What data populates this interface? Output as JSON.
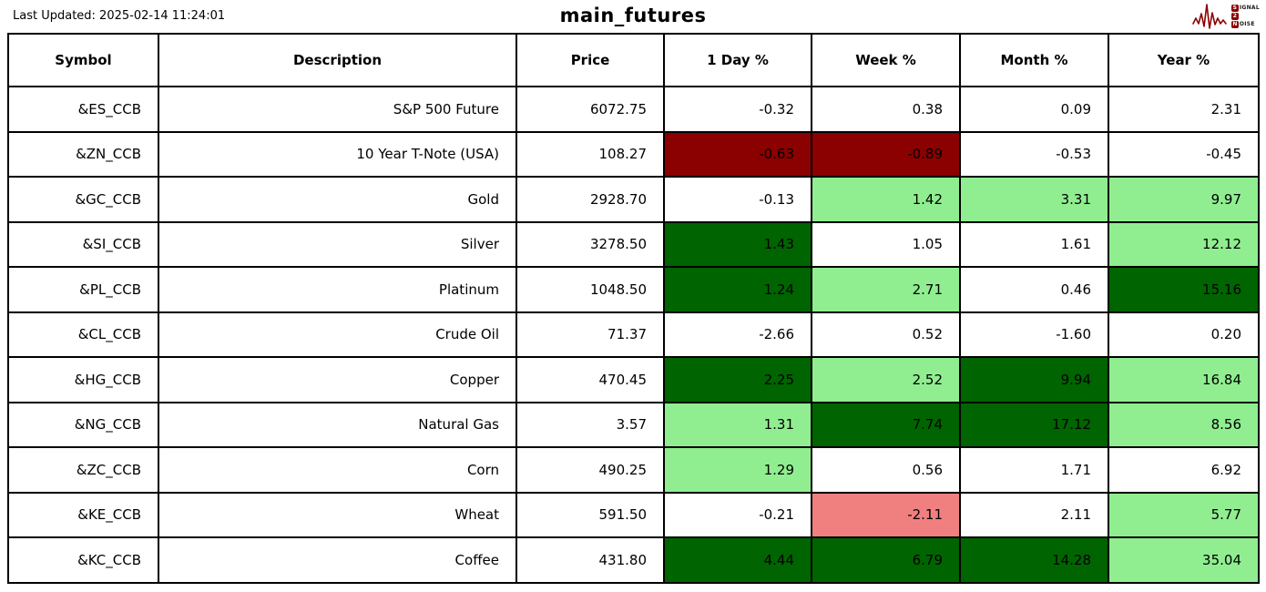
{
  "meta": {
    "last_updated": "Last Updated: 2025-02-14 11:24:01",
    "title": "main_futures"
  },
  "logo": {
    "s_box": "S",
    "signal_rest": "IGNAL",
    "two_box": "2",
    "n_box": "N",
    "noise_rest": "OISE",
    "accent_color": "#8B0000"
  },
  "chart_data": {
    "type": "table",
    "title": "main_futures",
    "columns": [
      "Symbol",
      "Description",
      "Price",
      "1 Day %",
      "Week %",
      "Month %",
      "Year %"
    ],
    "cell_colors": {
      "none": "#FFFFFF",
      "dark_red": "#8B0000",
      "light_coral": "#F08080",
      "light_green": "#90EE90",
      "dark_green": "#006400"
    },
    "rows": [
      {
        "symbol": "&ES_CCB",
        "description": "S&P 500 Future",
        "price": "6072.75",
        "pcts": [
          {
            "v": "-0.32",
            "bg": "none"
          },
          {
            "v": "0.38",
            "bg": "none"
          },
          {
            "v": "0.09",
            "bg": "none"
          },
          {
            "v": "2.31",
            "bg": "none"
          }
        ]
      },
      {
        "symbol": "&ZN_CCB",
        "description": "10 Year T-Note (USA)",
        "price": "108.27",
        "pcts": [
          {
            "v": "-0.63",
            "bg": "dark_red"
          },
          {
            "v": "-0.89",
            "bg": "dark_red"
          },
          {
            "v": "-0.53",
            "bg": "none"
          },
          {
            "v": "-0.45",
            "bg": "none"
          }
        ]
      },
      {
        "symbol": "&GC_CCB",
        "description": "Gold",
        "price": "2928.70",
        "pcts": [
          {
            "v": "-0.13",
            "bg": "none"
          },
          {
            "v": "1.42",
            "bg": "light_green"
          },
          {
            "v": "3.31",
            "bg": "light_green"
          },
          {
            "v": "9.97",
            "bg": "light_green"
          }
        ]
      },
      {
        "symbol": "&SI_CCB",
        "description": "Silver",
        "price": "3278.50",
        "pcts": [
          {
            "v": "1.43",
            "bg": "dark_green"
          },
          {
            "v": "1.05",
            "bg": "none"
          },
          {
            "v": "1.61",
            "bg": "none"
          },
          {
            "v": "12.12",
            "bg": "light_green"
          }
        ]
      },
      {
        "symbol": "&PL_CCB",
        "description": "Platinum",
        "price": "1048.50",
        "pcts": [
          {
            "v": "1.24",
            "bg": "dark_green"
          },
          {
            "v": "2.71",
            "bg": "light_green"
          },
          {
            "v": "0.46",
            "bg": "none"
          },
          {
            "v": "15.16",
            "bg": "dark_green"
          }
        ]
      },
      {
        "symbol": "&CL_CCB",
        "description": "Crude Oil",
        "price": "71.37",
        "pcts": [
          {
            "v": "-2.66",
            "bg": "none"
          },
          {
            "v": "0.52",
            "bg": "none"
          },
          {
            "v": "-1.60",
            "bg": "none"
          },
          {
            "v": "0.20",
            "bg": "none"
          }
        ]
      },
      {
        "symbol": "&HG_CCB",
        "description": "Copper",
        "price": "470.45",
        "pcts": [
          {
            "v": "2.25",
            "bg": "dark_green"
          },
          {
            "v": "2.52",
            "bg": "light_green"
          },
          {
            "v": "9.94",
            "bg": "dark_green"
          },
          {
            "v": "16.84",
            "bg": "light_green"
          }
        ]
      },
      {
        "symbol": "&NG_CCB",
        "description": "Natural Gas",
        "price": "3.57",
        "pcts": [
          {
            "v": "1.31",
            "bg": "light_green"
          },
          {
            "v": "7.74",
            "bg": "dark_green"
          },
          {
            "v": "17.12",
            "bg": "dark_green"
          },
          {
            "v": "8.56",
            "bg": "light_green"
          }
        ]
      },
      {
        "symbol": "&ZC_CCB",
        "description": "Corn",
        "price": "490.25",
        "pcts": [
          {
            "v": "1.29",
            "bg": "light_green"
          },
          {
            "v": "0.56",
            "bg": "none"
          },
          {
            "v": "1.71",
            "bg": "none"
          },
          {
            "v": "6.92",
            "bg": "none"
          }
        ]
      },
      {
        "symbol": "&KE_CCB",
        "description": "Wheat",
        "price": "591.50",
        "pcts": [
          {
            "v": "-0.21",
            "bg": "none"
          },
          {
            "v": "-2.11",
            "bg": "light_coral"
          },
          {
            "v": "2.11",
            "bg": "none"
          },
          {
            "v": "5.77",
            "bg": "light_green"
          }
        ]
      },
      {
        "symbol": "&KC_CCB",
        "description": "Coffee",
        "price": "431.80",
        "pcts": [
          {
            "v": "4.44",
            "bg": "dark_green"
          },
          {
            "v": "6.79",
            "bg": "dark_green"
          },
          {
            "v": "14.28",
            "bg": "dark_green"
          },
          {
            "v": "35.04",
            "bg": "light_green"
          }
        ]
      }
    ]
  }
}
